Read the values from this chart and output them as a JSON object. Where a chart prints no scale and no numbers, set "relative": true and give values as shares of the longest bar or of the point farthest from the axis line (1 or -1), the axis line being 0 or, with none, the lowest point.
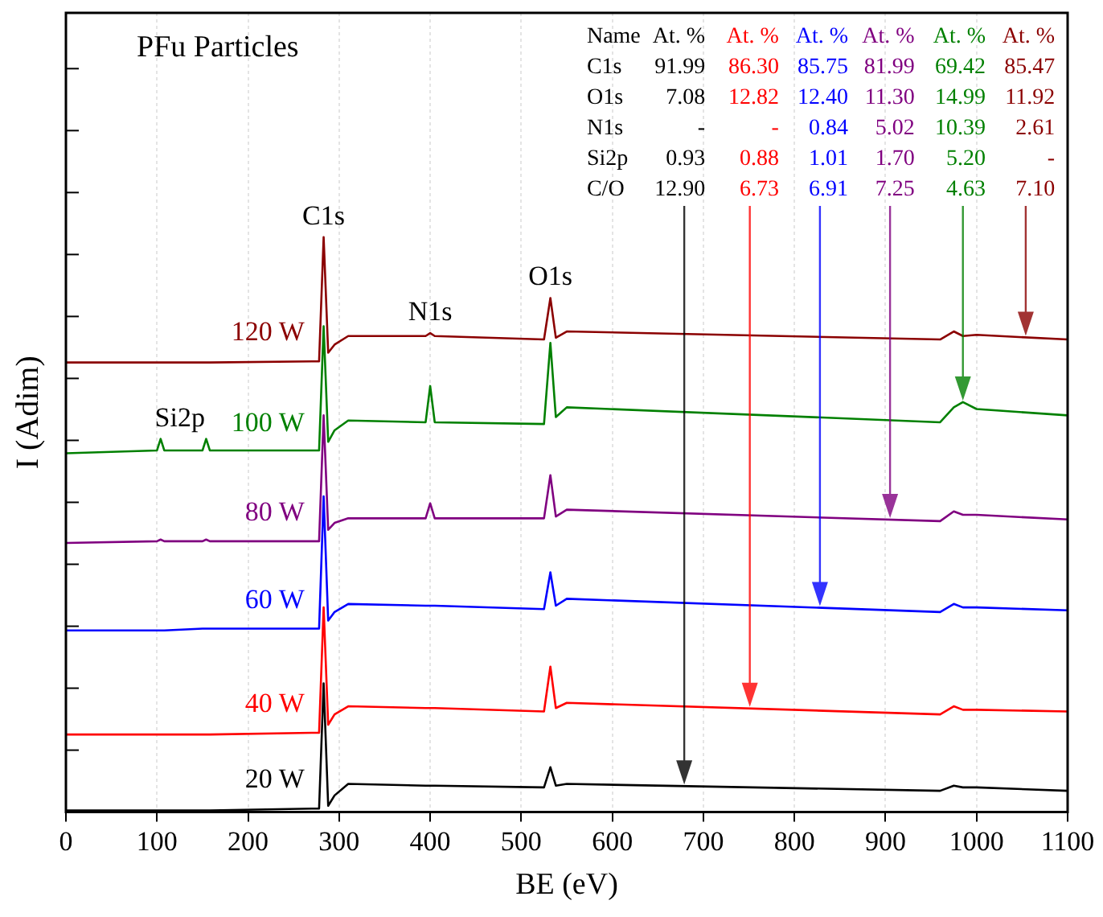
{
  "chart_data": {
    "type": "line",
    "title": "PFu Particles",
    "xlabel": "BE (eV)",
    "ylabel": "I (Adim)",
    "relative": true,
    "grid": "x",
    "marker": "none",
    "line_style": "solid",
    "xlim": [
      0,
      1100
    ],
    "xticks": [
      0,
      100,
      200,
      300,
      400,
      500,
      600,
      700,
      800,
      900,
      1000,
      1100
    ],
    "x": [
      0,
      100,
      104,
      108,
      150,
      154,
      158,
      270,
      278,
      283,
      288,
      295,
      310,
      395,
      400,
      405,
      525,
      532,
      538,
      550,
      960,
      975,
      985,
      1000,
      1100
    ],
    "series": [
      {
        "name": "20 W",
        "color": "#000000",
        "values": [
          0.003,
          0.003,
          0.003,
          0.003,
          0.003,
          0.003,
          0.003,
          0.006,
          0.006,
          0.224,
          0.011,
          0.029,
          0.049,
          0.046,
          0.046,
          0.046,
          0.043,
          0.078,
          0.046,
          0.049,
          0.037,
          0.046,
          0.043,
          0.043,
          0.037
        ]
      },
      {
        "name": "40 W",
        "color": "#ff0000",
        "values": [
          0.135,
          0.135,
          0.135,
          0.135,
          0.135,
          0.135,
          0.135,
          0.138,
          0.138,
          0.356,
          0.152,
          0.17,
          0.184,
          0.181,
          0.181,
          0.181,
          0.175,
          0.253,
          0.181,
          0.19,
          0.17,
          0.184,
          0.178,
          0.178,
          0.175
        ]
      },
      {
        "name": "60 W",
        "color": "#0000ff",
        "values": [
          0.316,
          0.316,
          0.316,
          0.316,
          0.319,
          0.319,
          0.319,
          0.319,
          0.319,
          0.549,
          0.333,
          0.348,
          0.362,
          0.359,
          0.359,
          0.359,
          0.353,
          0.417,
          0.359,
          0.371,
          0.348,
          0.362,
          0.356,
          0.356,
          0.351
        ]
      },
      {
        "name": "80 W",
        "color": "#800080",
        "values": [
          0.468,
          0.471,
          0.474,
          0.471,
          0.471,
          0.474,
          0.471,
          0.471,
          0.471,
          0.69,
          0.491,
          0.503,
          0.511,
          0.511,
          0.537,
          0.511,
          0.511,
          0.586,
          0.514,
          0.526,
          0.506,
          0.523,
          0.517,
          0.517,
          0.509
        ]
      },
      {
        "name": "100 W",
        "color": "#008000",
        "values": [
          0.624,
          0.629,
          0.649,
          0.629,
          0.629,
          0.649,
          0.629,
          0.629,
          0.629,
          0.845,
          0.644,
          0.664,
          0.681,
          0.678,
          0.741,
          0.678,
          0.675,
          0.816,
          0.687,
          0.704,
          0.678,
          0.704,
          0.713,
          0.701,
          0.69
        ]
      },
      {
        "name": "120 W",
        "color": "#8b0000",
        "values": [
          0.782,
          0.782,
          0.782,
          0.782,
          0.782,
          0.782,
          0.782,
          0.784,
          0.784,
          1,
          0.799,
          0.813,
          0.828,
          0.828,
          0.833,
          0.828,
          0.822,
          0.894,
          0.825,
          0.836,
          0.822,
          0.836,
          0.828,
          0.83,
          0.822
        ]
      }
    ],
    "annotations": [
      {
        "text": "C1s",
        "x": 283,
        "y": 1
      },
      {
        "text": "N1s",
        "x": 400,
        "y": 0.833
      },
      {
        "text": "O1s",
        "x": 532,
        "y": 0.894
      },
      {
        "text": "Si2p",
        "x": 104,
        "y": 0.649
      },
      "Name",
      "At. %",
      "At. %",
      "At. %",
      "At. %",
      "At. %",
      "At. %",
      "C1s",
      "91.99",
      "86.30",
      "85.75",
      "81.99",
      "69.42",
      "85.47",
      "O1s",
      "7.08",
      "12.82",
      "12.40",
      "11.30",
      "14.99",
      "11.92",
      "N1s",
      "-",
      "-",
      "0.84",
      "5.02",
      "10.39",
      "2.61",
      "Si2p",
      "0.93",
      "0.88",
      "1.01",
      "1.70",
      "5.20",
      "-",
      "C/O",
      "12.90",
      "6.73",
      "6.91",
      "7.25",
      "4.63",
      "7.10"
    ]
  }
}
